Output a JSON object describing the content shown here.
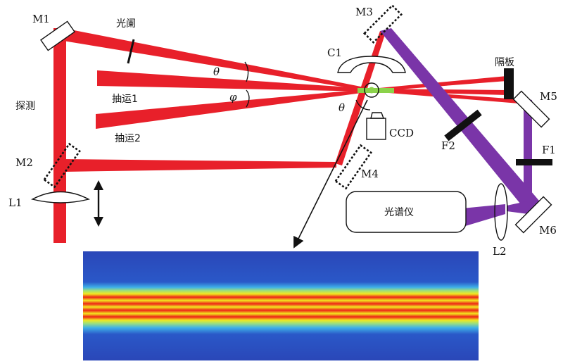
{
  "labels": {
    "m1": "M1",
    "m2": "M2",
    "m3": "M3",
    "m4": "M4",
    "m5": "M5",
    "m6": "M6",
    "l1": "L1",
    "l2": "L2",
    "c1": "C1",
    "f1": "F1",
    "f2": "F2",
    "ccd": "CCD",
    "aperture": "光阑",
    "probe": "探测",
    "pump1": "抽运1",
    "pump2": "抽运2",
    "baffle": "隔板",
    "spectrometer": "光谱仪",
    "theta_top": "θ",
    "phi": "φ",
    "theta_bottom": "θ"
  },
  "colors": {
    "red_beam": "#e8202a",
    "violet_beam": "#7a35a8",
    "sample": "#8bd24a",
    "optics_outline": "#111111",
    "inset_background": "#2a47b8"
  }
}
